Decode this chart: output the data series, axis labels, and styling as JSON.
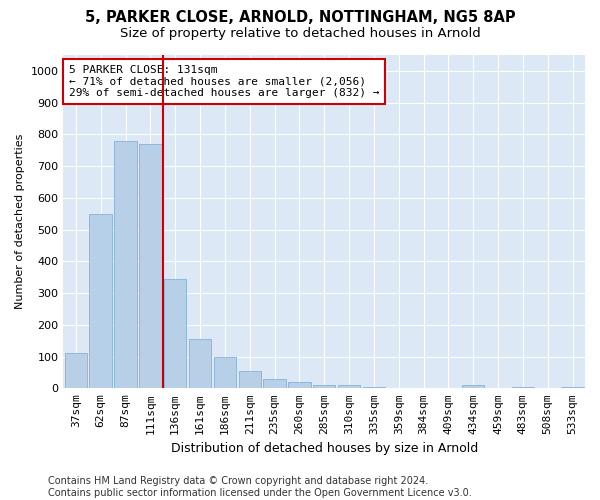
{
  "title1": "5, PARKER CLOSE, ARNOLD, NOTTINGHAM, NG5 8AP",
  "title2": "Size of property relative to detached houses in Arnold",
  "xlabel": "Distribution of detached houses by size in Arnold",
  "ylabel": "Number of detached properties",
  "categories": [
    "37sqm",
    "62sqm",
    "87sqm",
    "111sqm",
    "136sqm",
    "161sqm",
    "186sqm",
    "211sqm",
    "235sqm",
    "260sqm",
    "285sqm",
    "310sqm",
    "335sqm",
    "359sqm",
    "384sqm",
    "409sqm",
    "434sqm",
    "459sqm",
    "483sqm",
    "508sqm",
    "533sqm"
  ],
  "values": [
    110,
    550,
    780,
    770,
    345,
    155,
    100,
    55,
    30,
    20,
    10,
    10,
    5,
    0,
    0,
    0,
    10,
    0,
    5,
    0,
    5
  ],
  "bar_color": "#b8cfe8",
  "bar_edgecolor": "#7aaad0",
  "vline_color": "#cc0000",
  "annotation_box_edgecolor": "#cc0000",
  "plot_bg_color": "#dce8f5",
  "fig_bg_color": "#ffffff",
  "ylim": [
    0,
    1050
  ],
  "yticks": [
    0,
    100,
    200,
    300,
    400,
    500,
    600,
    700,
    800,
    900,
    1000
  ],
  "marker_label": "5 PARKER CLOSE: 131sqm",
  "marker_line_label1": "← 71% of detached houses are smaller (2,056)",
  "marker_line_label2": "29% of semi-detached houses are larger (832) →",
  "footer1": "Contains HM Land Registry data © Crown copyright and database right 2024.",
  "footer2": "Contains public sector information licensed under the Open Government Licence v3.0.",
  "title1_fontsize": 10.5,
  "title2_fontsize": 9.5,
  "xlabel_fontsize": 9,
  "ylabel_fontsize": 8,
  "tick_fontsize": 8,
  "annotation_fontsize": 8,
  "footer_fontsize": 7
}
